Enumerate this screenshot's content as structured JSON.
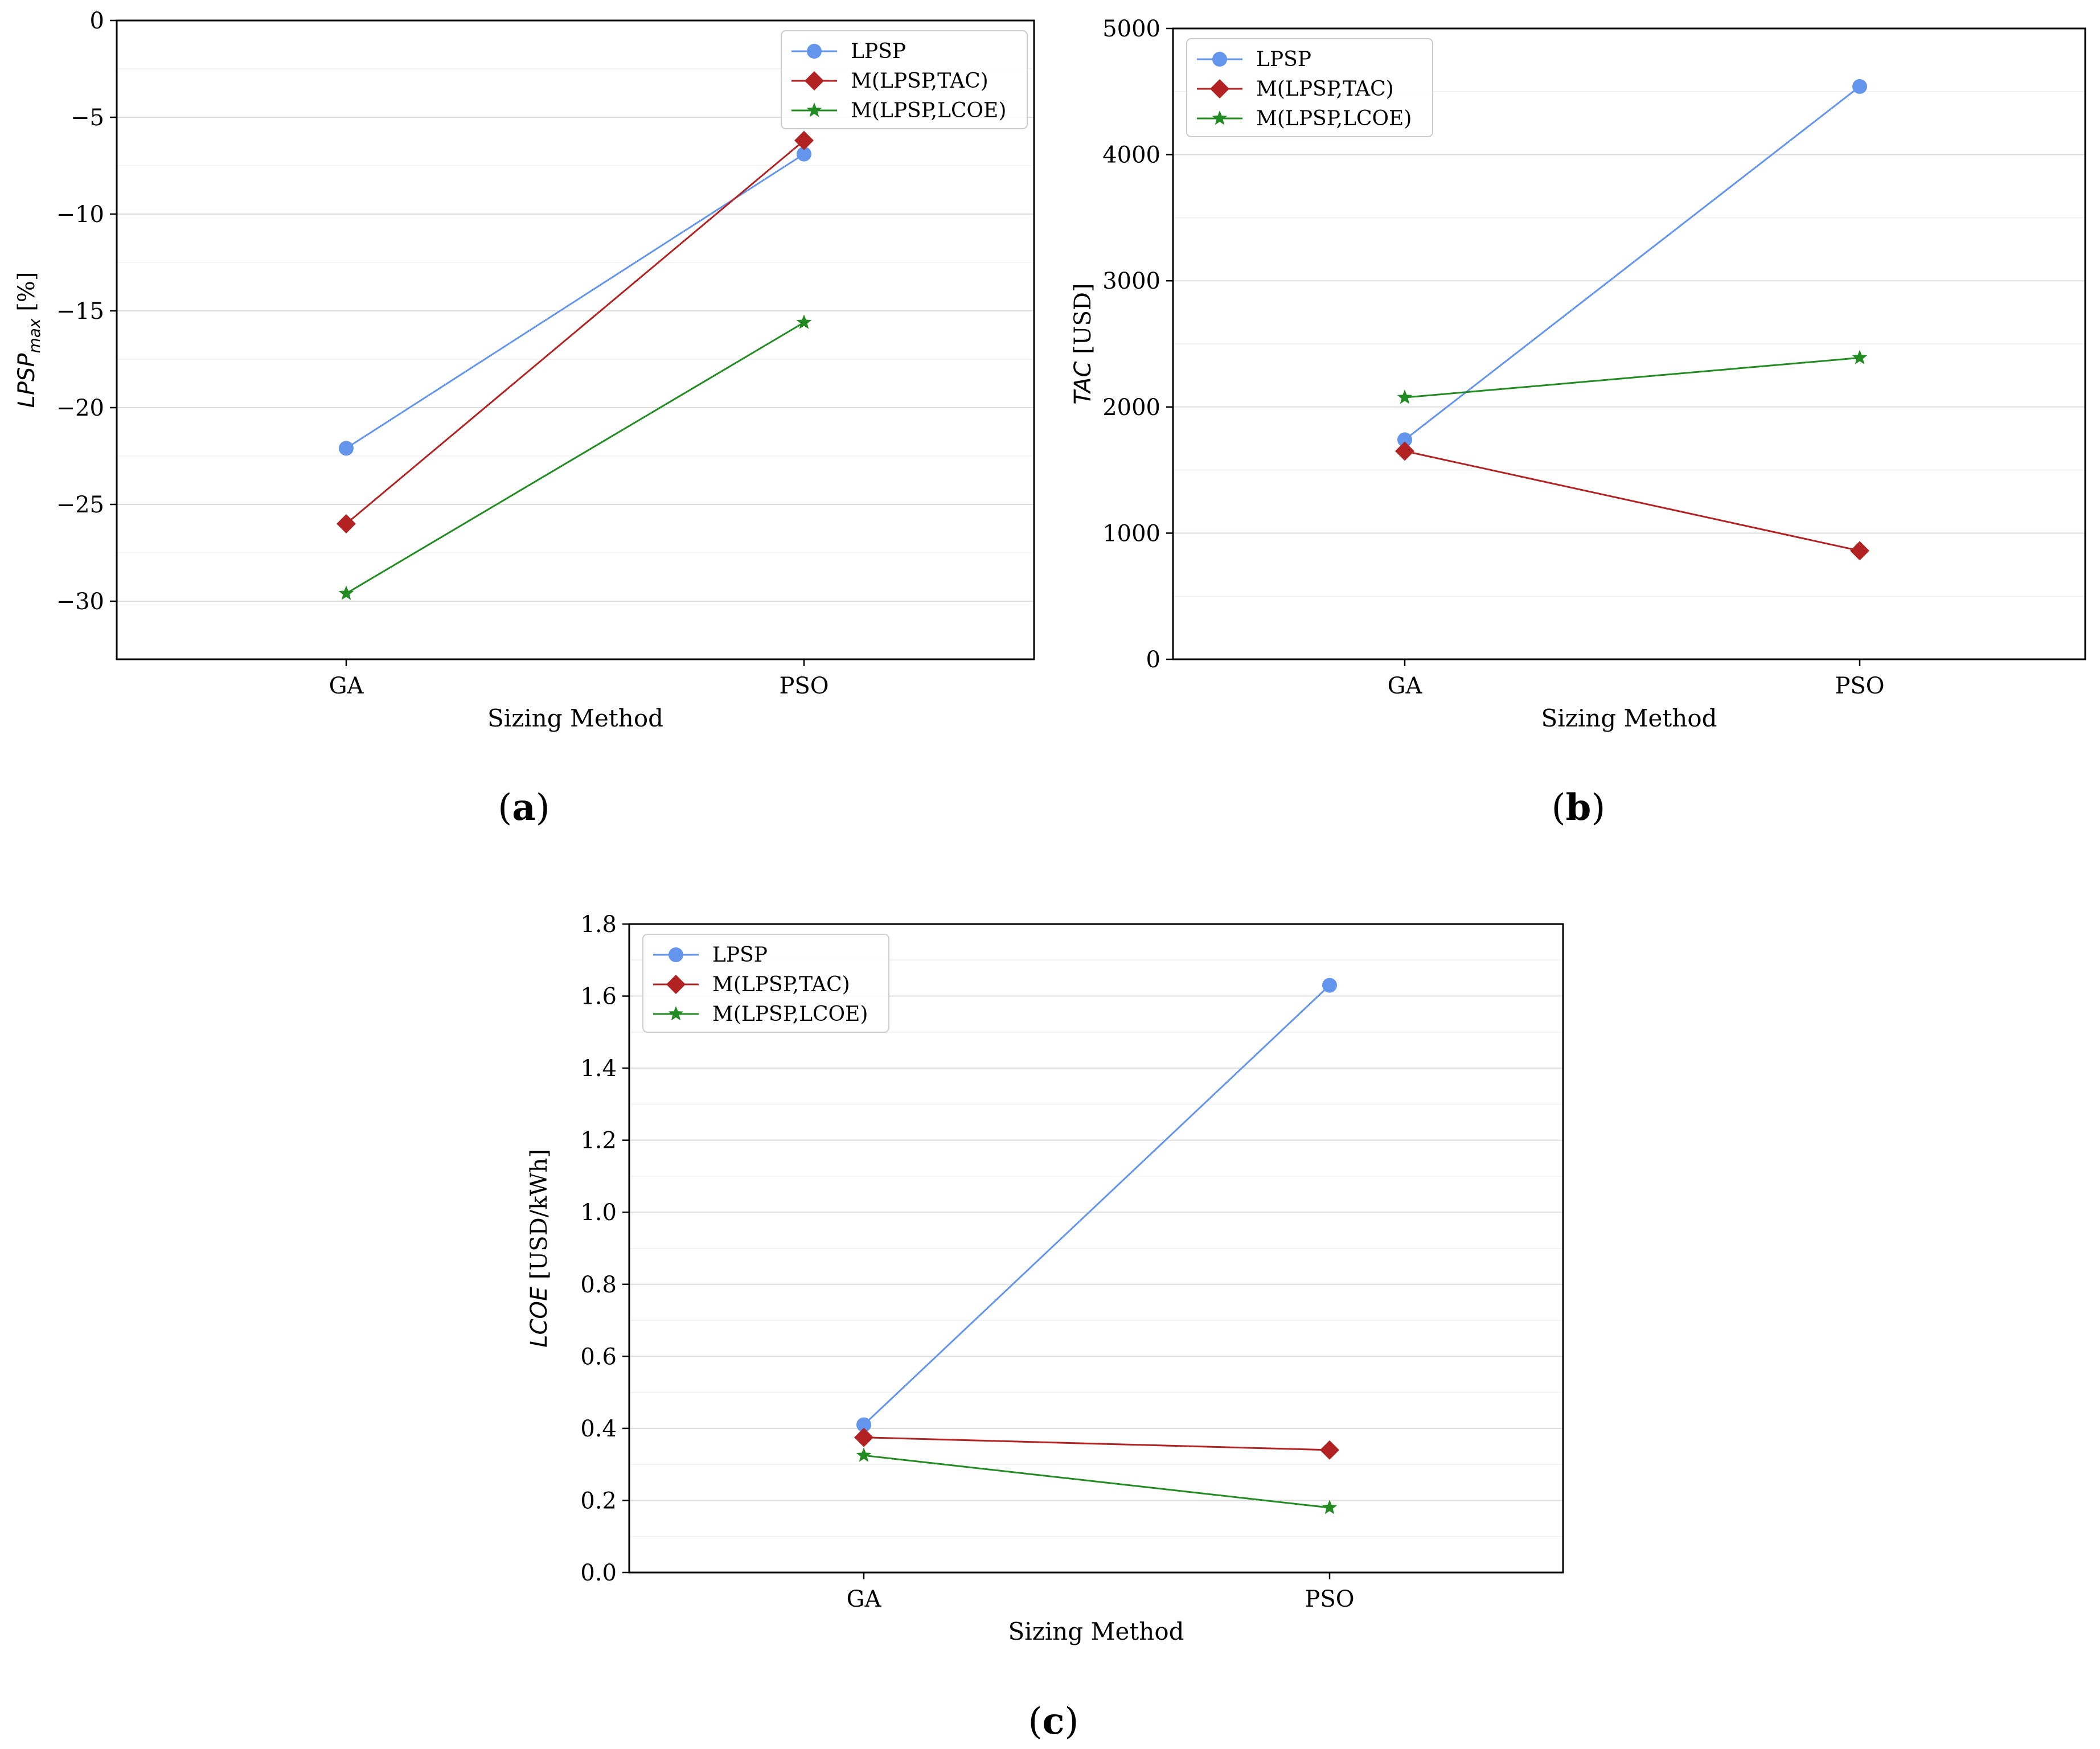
{
  "colors": {
    "LPSP": "#6495ED",
    "M(LPSP,TAC)": "#B22222",
    "M(LPSP,LCOE)": "#228B22",
    "grid": "#dddddd",
    "axis": "#000000"
  },
  "chart_data": [
    {
      "id": "a",
      "type": "line",
      "panel_label": "a",
      "categories": [
        "GA",
        "PSO"
      ],
      "xlabel": "Sizing Method",
      "ylabel_main": "LPSP",
      "ylabel_sub": "max",
      "ylabel_unit": " [%]",
      "ylim": [
        -33,
        0
      ],
      "yticks": [
        0,
        -5,
        -10,
        -15,
        -20,
        -25,
        -30
      ],
      "ytick_labels": [
        "0",
        "−5",
        "−10",
        "−15",
        "−20",
        "−25",
        "−30"
      ],
      "legend_position": "top-right",
      "series": [
        {
          "name": "LPSP",
          "marker": "circle",
          "values": [
            -22.1,
            -6.9
          ]
        },
        {
          "name": "M(LPSP,TAC)",
          "marker": "diamond",
          "values": [
            -26.0,
            -6.2
          ]
        },
        {
          "name": "M(LPSP,LCOE)",
          "marker": "star",
          "values": [
            -29.6,
            -15.6
          ]
        }
      ]
    },
    {
      "id": "b",
      "type": "line",
      "panel_label": "b",
      "categories": [
        "GA",
        "PSO"
      ],
      "xlabel": "Sizing Method",
      "ylabel_main": "TAC",
      "ylabel_sub": "",
      "ylabel_unit": " [USD]",
      "ylim": [
        0,
        5000
      ],
      "yticks": [
        0,
        1000,
        2000,
        3000,
        4000,
        5000
      ],
      "ytick_labels": [
        "0",
        "1000",
        "2000",
        "3000",
        "4000",
        "5000"
      ],
      "legend_position": "top-left",
      "series": [
        {
          "name": "LPSP",
          "marker": "circle",
          "values": [
            1740,
            4540
          ]
        },
        {
          "name": "M(LPSP,TAC)",
          "marker": "diamond",
          "values": [
            1650,
            860
          ]
        },
        {
          "name": "M(LPSP,LCOE)",
          "marker": "star",
          "values": [
            2075,
            2390
          ]
        }
      ]
    },
    {
      "id": "c",
      "type": "line",
      "panel_label": "c",
      "categories": [
        "GA",
        "PSO"
      ],
      "xlabel": "Sizing Method",
      "ylabel_main": "LCOE",
      "ylabel_sub": "",
      "ylabel_unit": " [USD/kWh]",
      "ylim": [
        0,
        1.8
      ],
      "yticks": [
        0,
        0.2,
        0.4,
        0.6,
        0.8,
        1.0,
        1.2,
        1.4,
        1.6,
        1.8
      ],
      "ytick_labels": [
        "0.0",
        "0.2",
        "0.4",
        "0.6",
        "0.8",
        "1.0",
        "1.2",
        "1.4",
        "1.6",
        "1.8"
      ],
      "legend_position": "top-left",
      "series": [
        {
          "name": "LPSP",
          "marker": "circle",
          "values": [
            0.41,
            1.63
          ]
        },
        {
          "name": "M(LPSP,TAC)",
          "marker": "diamond",
          "values": [
            0.375,
            0.34
          ]
        },
        {
          "name": "M(LPSP,LCOE)",
          "marker": "star",
          "values": [
            0.325,
            0.18
          ]
        }
      ]
    }
  ]
}
